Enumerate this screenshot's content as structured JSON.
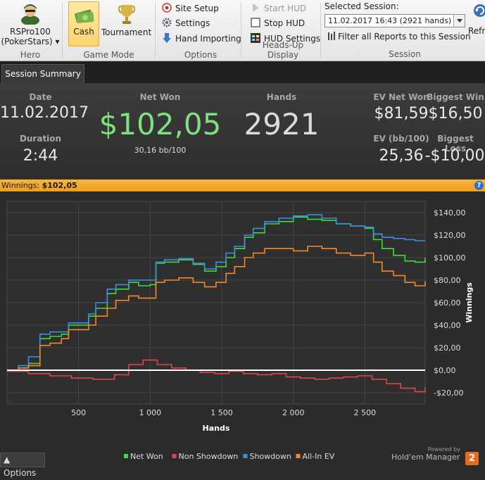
{
  "ribbon": {
    "hero": {
      "name": "RSPro100",
      "site": "(PokerStars) ▾",
      "group_label": "Hero"
    },
    "game_mode": {
      "cash_label": "Cash",
      "tournament_label": "Tournament",
      "group_label": "Game Mode",
      "selected": "Cash"
    },
    "options": {
      "site_setup": "Site Setup",
      "settings": "Settings",
      "hand_importing": "Hand Importing",
      "group_label": "Options"
    },
    "hud": {
      "start_hud": "Start HUD",
      "stop_hud": "Stop HUD",
      "hud_settings": "HUD Settings",
      "group_label": "Heads-Up Display"
    },
    "session": {
      "title": "Selected Session:",
      "selected_value": "11.02.2017 16:43 (2921 hands)",
      "filter_label": "Filter all Reports to this Session",
      "refresh_label": "Refre",
      "group_label": "Session"
    }
  },
  "tab": {
    "label": "Session Summary"
  },
  "summary": {
    "date_label": "Date",
    "date_value": "11.02.2017",
    "duration_label": "Duration",
    "duration_value": "2:44",
    "net_won_label": "Net Won",
    "net_won_value": "$102,05",
    "net_won_sub": "30,16 bb/100",
    "hands_label": "Hands",
    "hands_value": "2921",
    "ev_net_won_label": "EV Net Won",
    "ev_net_won_value": "$81,59",
    "ev_bb_label": "EV (bb/100)",
    "ev_bb_value": "25,36",
    "biggest_win_label": "Biggest Win",
    "biggest_win_value": "$16,50",
    "biggest_loss_label": "Biggest Loss",
    "biggest_loss_value": "-$10,00"
  },
  "winbar": {
    "label": "Winnings:",
    "value": "$102,05",
    "help": "?"
  },
  "footer": {
    "options_label": "Options",
    "powered_by": "Powered by",
    "brand": "Hold'em Manager",
    "badge": "2"
  },
  "colors": {
    "net_won": "#3bdc3b",
    "non_showdown": "#e0454a",
    "showdown": "#3c8fe0",
    "allin_ev": "#f08a2a",
    "accent": "#f0a830"
  },
  "chart_data": {
    "type": "line",
    "xlabel": "Hands",
    "ylabel": "Winnings",
    "xlim": [
      0,
      2921
    ],
    "ylim": [
      -30,
      150
    ],
    "x_ticks": [
      500,
      1000,
      1500,
      2000,
      2500
    ],
    "x_tick_labels": [
      "500",
      "1 000",
      "1 500",
      "2 000",
      "2 500"
    ],
    "y_ticks": [
      -20,
      0,
      20,
      40,
      60,
      80,
      100,
      120,
      140
    ],
    "y_tick_labels": [
      "-$20,00",
      "$0,00",
      "$20,00",
      "$40,00",
      "$60,00",
      "$80,00",
      "$100,00",
      "$120,00",
      "$140,00"
    ],
    "grid": true,
    "legend_position": "bottom",
    "series": [
      {
        "name": "Net Won",
        "color": "#3bdc3b",
        "points": [
          [
            0,
            0
          ],
          [
            80,
            2
          ],
          [
            150,
            6
          ],
          [
            230,
            28
          ],
          [
            300,
            30
          ],
          [
            380,
            32
          ],
          [
            430,
            40
          ],
          [
            500,
            40
          ],
          [
            570,
            48
          ],
          [
            620,
            55
          ],
          [
            700,
            68
          ],
          [
            760,
            72
          ],
          [
            850,
            78
          ],
          [
            920,
            75
          ],
          [
            1000,
            76
          ],
          [
            1040,
            95
          ],
          [
            1100,
            96
          ],
          [
            1200,
            98
          ],
          [
            1300,
            94
          ],
          [
            1380,
            88
          ],
          [
            1460,
            92
          ],
          [
            1530,
            100
          ],
          [
            1590,
            108
          ],
          [
            1660,
            118
          ],
          [
            1720,
            122
          ],
          [
            1800,
            130
          ],
          [
            1900,
            132
          ],
          [
            2000,
            136
          ],
          [
            2100,
            134
          ],
          [
            2200,
            133
          ],
          [
            2300,
            130
          ],
          [
            2400,
            128
          ],
          [
            2500,
            126
          ],
          [
            2560,
            116
          ],
          [
            2620,
            108
          ],
          [
            2700,
            102
          ],
          [
            2780,
            97
          ],
          [
            2850,
            96
          ],
          [
            2921,
            100
          ]
        ]
      },
      {
        "name": "Non Showdown",
        "color": "#e0454a",
        "points": [
          [
            0,
            -1
          ],
          [
            150,
            -3
          ],
          [
            300,
            -5
          ],
          [
            450,
            -7
          ],
          [
            600,
            -8
          ],
          [
            750,
            -4
          ],
          [
            850,
            5
          ],
          [
            950,
            9
          ],
          [
            1050,
            5
          ],
          [
            1150,
            2
          ],
          [
            1250,
            0
          ],
          [
            1350,
            -2
          ],
          [
            1450,
            -3
          ],
          [
            1550,
            -1
          ],
          [
            1650,
            -3
          ],
          [
            1750,
            -4
          ],
          [
            1850,
            -3
          ],
          [
            1950,
            -6
          ],
          [
            2050,
            -7
          ],
          [
            2150,
            -8
          ],
          [
            2250,
            -7
          ],
          [
            2350,
            -6
          ],
          [
            2450,
            -5
          ],
          [
            2550,
            -8
          ],
          [
            2650,
            -12
          ],
          [
            2750,
            -16
          ],
          [
            2850,
            -19
          ],
          [
            2921,
            -15
          ]
        ]
      },
      {
        "name": "Showdown",
        "color": "#3c8fe0",
        "points": [
          [
            0,
            0
          ],
          [
            80,
            4
          ],
          [
            150,
            12
          ],
          [
            230,
            32
          ],
          [
            300,
            34
          ],
          [
            380,
            34
          ],
          [
            430,
            42
          ],
          [
            500,
            42
          ],
          [
            570,
            50
          ],
          [
            620,
            60
          ],
          [
            700,
            72
          ],
          [
            760,
            76
          ],
          [
            850,
            80
          ],
          [
            920,
            80
          ],
          [
            1000,
            80
          ],
          [
            1040,
            96
          ],
          [
            1100,
            98
          ],
          [
            1200,
            99
          ],
          [
            1300,
            95
          ],
          [
            1380,
            90
          ],
          [
            1460,
            96
          ],
          [
            1530,
            104
          ],
          [
            1590,
            110
          ],
          [
            1660,
            120
          ],
          [
            1720,
            126
          ],
          [
            1800,
            132
          ],
          [
            1900,
            135
          ],
          [
            2000,
            137
          ],
          [
            2100,
            138
          ],
          [
            2200,
            135
          ],
          [
            2300,
            130
          ],
          [
            2400,
            128
          ],
          [
            2500,
            127
          ],
          [
            2560,
            121
          ],
          [
            2620,
            118
          ],
          [
            2700,
            117
          ],
          [
            2780,
            116
          ],
          [
            2850,
            115
          ],
          [
            2921,
            115
          ]
        ]
      },
      {
        "name": "All-In EV",
        "color": "#f08a2a",
        "points": [
          [
            0,
            0
          ],
          [
            80,
            2
          ],
          [
            150,
            4
          ],
          [
            230,
            22
          ],
          [
            300,
            24
          ],
          [
            380,
            28
          ],
          [
            430,
            36
          ],
          [
            500,
            36
          ],
          [
            570,
            40
          ],
          [
            620,
            48
          ],
          [
            700,
            55
          ],
          [
            760,
            62
          ],
          [
            850,
            66
          ],
          [
            920,
            64
          ],
          [
            1000,
            64
          ],
          [
            1040,
            78
          ],
          [
            1100,
            80
          ],
          [
            1200,
            82
          ],
          [
            1300,
            78
          ],
          [
            1380,
            74
          ],
          [
            1460,
            78
          ],
          [
            1530,
            86
          ],
          [
            1590,
            92
          ],
          [
            1660,
            100
          ],
          [
            1720,
            104
          ],
          [
            1800,
            108
          ],
          [
            1900,
            108
          ],
          [
            2000,
            106
          ],
          [
            2100,
            110
          ],
          [
            2200,
            108
          ],
          [
            2300,
            104
          ],
          [
            2400,
            102
          ],
          [
            2500,
            104
          ],
          [
            2560,
            96
          ],
          [
            2620,
            88
          ],
          [
            2700,
            84
          ],
          [
            2780,
            78
          ],
          [
            2850,
            75
          ],
          [
            2921,
            79
          ]
        ]
      }
    ]
  }
}
